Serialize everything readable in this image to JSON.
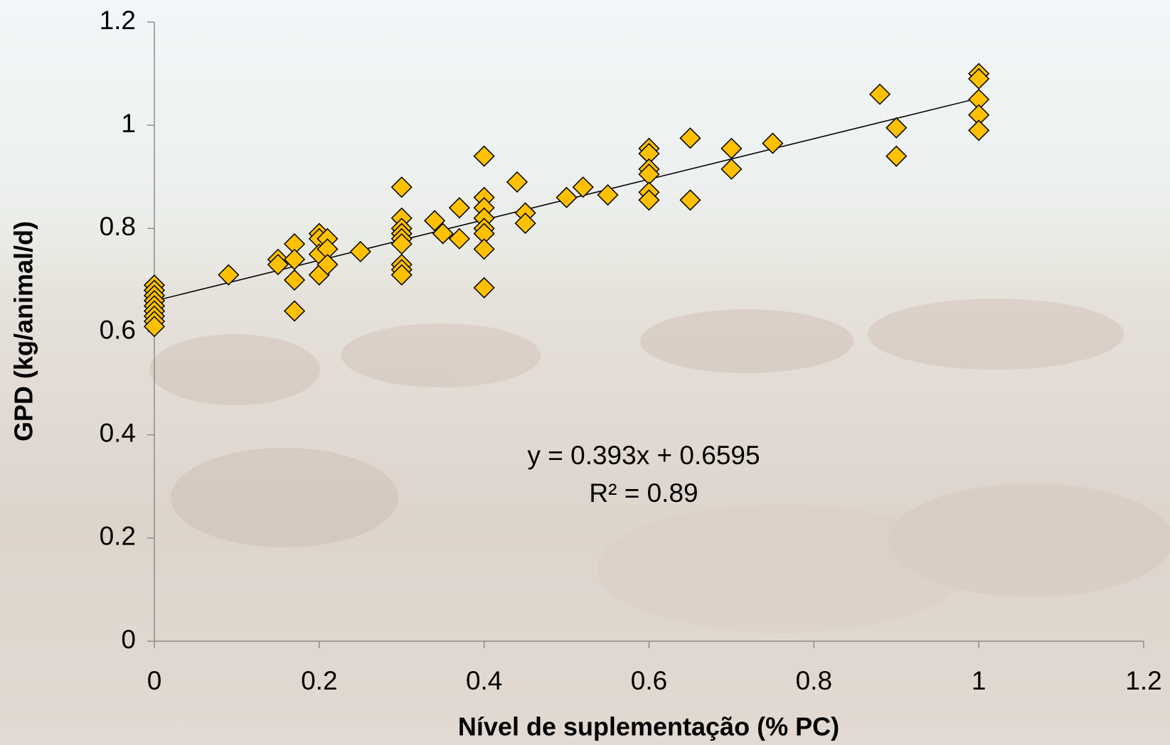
{
  "chart_data": {
    "type": "scatter",
    "x_label": "Nível de suplementação  (% PC)",
    "y_label": "GPD (kg/animal/d)",
    "xlim": [
      0,
      1.2
    ],
    "ylim": [
      0,
      1.2
    ],
    "xticks": [
      0,
      0.2,
      0.4,
      0.6,
      0.8,
      1,
      1.2
    ],
    "yticks": [
      0,
      0.2,
      0.4,
      0.6,
      0.8,
      1,
      1.2
    ],
    "grid": false,
    "series": [
      {
        "color": "#FFC000",
        "x": [
          0,
          0,
          0,
          0,
          0,
          0,
          0,
          0,
          0,
          0.09,
          0.15,
          0.15,
          0.17,
          0.17,
          0.17,
          0.17,
          0.2,
          0.2,
          0.2,
          0.2,
          0.21,
          0.21,
          0.21,
          0.25,
          0.3,
          0.3,
          0.3,
          0.3,
          0.3,
          0.3,
          0.3,
          0.3,
          0.3,
          0.34,
          0.35,
          0.37,
          0.37,
          0.4,
          0.4,
          0.4,
          0.4,
          0.4,
          0.4,
          0.4,
          0.4,
          0.44,
          0.45,
          0.45,
          0.5,
          0.52,
          0.55,
          0.6,
          0.6,
          0.6,
          0.6,
          0.6,
          0.6,
          0.65,
          0.65,
          0.7,
          0.7,
          0.75,
          0.88,
          0.9,
          0.9,
          1,
          1,
          1,
          1,
          1
        ],
        "values": [
          0.69,
          0.68,
          0.67,
          0.66,
          0.65,
          0.64,
          0.63,
          0.62,
          0.61,
          0.71,
          0.74,
          0.73,
          0.77,
          0.74,
          0.7,
          0.64,
          0.79,
          0.78,
          0.75,
          0.71,
          0.78,
          0.76,
          0.73,
          0.755,
          0.88,
          0.82,
          0.8,
          0.79,
          0.78,
          0.77,
          0.73,
          0.72,
          0.71,
          0.815,
          0.79,
          0.84,
          0.78,
          0.94,
          0.86,
          0.84,
          0.82,
          0.8,
          0.79,
          0.76,
          0.685,
          0.89,
          0.83,
          0.81,
          0.86,
          0.88,
          0.865,
          0.955,
          0.945,
          0.915,
          0.905,
          0.87,
          0.855,
          0.975,
          0.855,
          0.955,
          0.915,
          0.965,
          1.06,
          0.995,
          0.94,
          1.1,
          1.09,
          1.05,
          1.02,
          0.99
        ]
      }
    ],
    "trendline": {
      "slope": 0.393,
      "intercept": 0.6595,
      "x_range": [
        0,
        1
      ],
      "color": "#000000"
    },
    "annotations": [
      "y = 0.393x + 0.6595",
      "R² = 0.89"
    ]
  }
}
